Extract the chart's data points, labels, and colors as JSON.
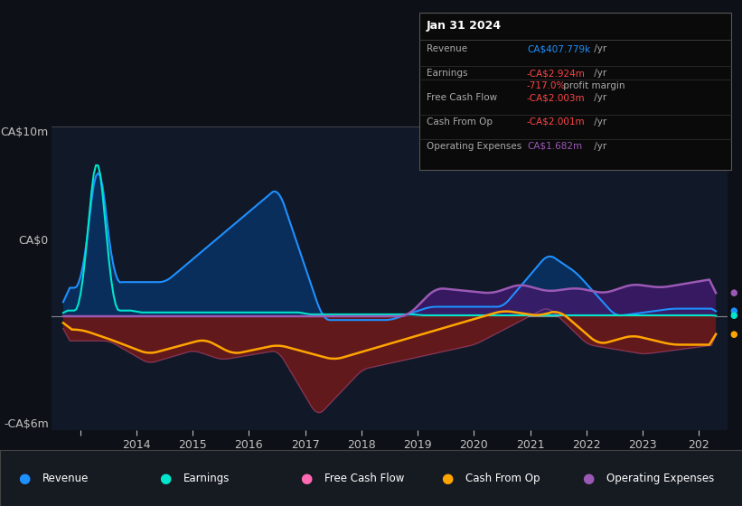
{
  "bg_color": "#0d1117",
  "plot_bg_color": "#111827",
  "text_color": "#c0c0c0",
  "ylabel_top": "CA$10m",
  "ylabel_zero": "CA$0",
  "ylabel_bottom": "-CA$6m",
  "ylim": [
    -6,
    10
  ],
  "xlim": [
    2012.5,
    2024.5
  ],
  "colors": {
    "revenue": "#1e90ff",
    "earnings": "#00e5cc",
    "free_cash_flow": "#ff69b4",
    "cash_from_op": "#ffa500",
    "operating_expenses": "#9b59b6"
  },
  "fill_colors": {
    "revenue_pos": "#0a3060",
    "earnings_neg": "#6b1a1a",
    "operating_expenses": "#3d1a6b"
  },
  "info_box": {
    "date": "Jan 31 2024",
    "revenue_label": "Revenue",
    "revenue_value": "CA$407.779k",
    "revenue_color": "#1e90ff",
    "earnings_label": "Earnings",
    "earnings_value": "-CA$2.924m",
    "earnings_color": "#ff4444",
    "margin_value": "-717.0%",
    "margin_color": "#ff4444",
    "margin_text": " profit margin",
    "fcf_label": "Free Cash Flow",
    "fcf_value": "-CA$2.003m",
    "fcf_color": "#ff4444",
    "cashop_label": "Cash From Op",
    "cashop_value": "-CA$2.001m",
    "cashop_color": "#ff4444",
    "opex_label": "Operating Expenses",
    "opex_value": "CA$1.682m",
    "opex_color": "#9b59b6",
    "suffix": " /yr"
  },
  "legend": [
    {
      "label": "Revenue",
      "color": "#1e90ff"
    },
    {
      "label": "Earnings",
      "color": "#00e5cc"
    },
    {
      "label": "Free Cash Flow",
      "color": "#ff69b4"
    },
    {
      "label": "Cash From Op",
      "color": "#ffa500"
    },
    {
      "label": "Operating Expenses",
      "color": "#9b59b6"
    }
  ]
}
